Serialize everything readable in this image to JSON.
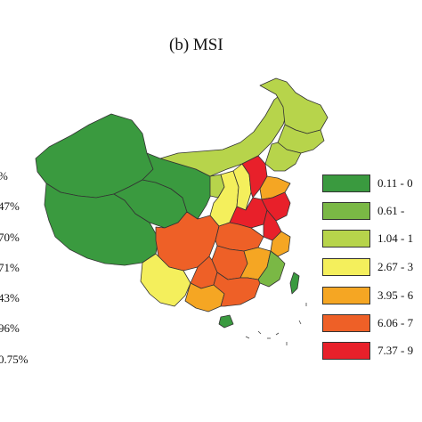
{
  "title": "(b) MSI",
  "left_labels": [
    "%",
    "47%",
    "70%",
    "71%",
    "43%",
    "96%",
    "0.75%"
  ],
  "legend": [
    {
      "label": "0.11 - 0",
      "color": "#3a9a3f"
    },
    {
      "label": "0.61 -",
      "color": "#7ab845"
    },
    {
      "label": "1.04 - 1",
      "color": "#b7d44b"
    },
    {
      "label": "2.67 - 3",
      "color": "#f4ef5c"
    },
    {
      "label": "3.95 - 6",
      "color": "#f5a623"
    },
    {
      "label": "6.06 - 7",
      "color": "#ee6027"
    },
    {
      "label": "7.37 - 9",
      "color": "#e8202a"
    }
  ]
}
